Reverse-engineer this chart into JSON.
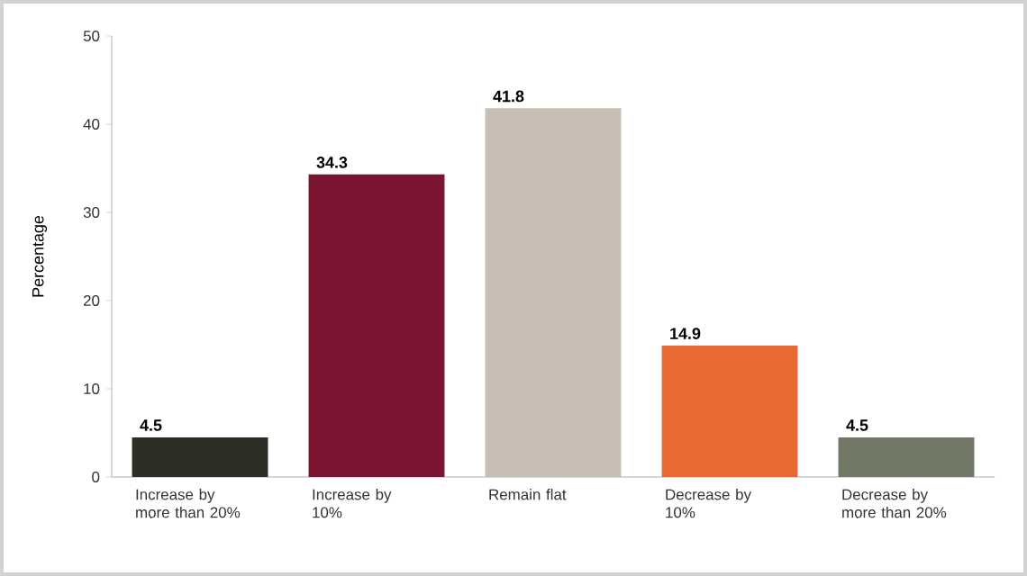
{
  "chart_data": {
    "type": "bar",
    "ylabel": "Percentage",
    "categories": [
      "Increase by more than 20%",
      "Increase by 10%",
      "Remain flat",
      "Decrease by 10%",
      "Decrease by more than 20%"
    ],
    "values": [
      4.5,
      34.3,
      41.8,
      14.9,
      4.5
    ],
    "colors": [
      "#2e2e26",
      "#7a1430",
      "#c8beb4",
      "#e86a35",
      "#727866"
    ],
    "ylim": [
      0,
      50
    ],
    "yticks": [
      0,
      10,
      20,
      30,
      40,
      50
    ],
    "data_labels": true
  }
}
